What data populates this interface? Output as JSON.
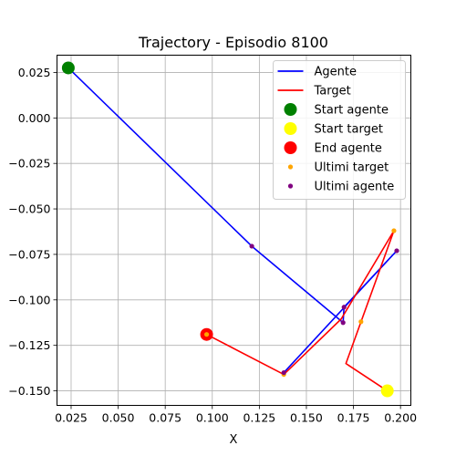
{
  "chart_data": {
    "type": "line",
    "title": "Trajectory - Episodio 8100",
    "xlabel": "X",
    "ylabel": "",
    "xlim": [
      0.0175,
      0.2055
    ],
    "ylim": [
      -0.158,
      0.0345
    ],
    "xticks": [
      0.025,
      0.05,
      0.075,
      0.1,
      0.125,
      0.15,
      0.175,
      0.2
    ],
    "xtick_labels": [
      "0.025",
      "0.050",
      "0.075",
      "0.100",
      "0.125",
      "0.150",
      "0.175",
      "0.200"
    ],
    "yticks": [
      0.025,
      0.0,
      -0.025,
      -0.05,
      -0.075,
      -0.1,
      -0.125,
      -0.15
    ],
    "ytick_labels": [
      "0.025",
      "0.000",
      "−0.025",
      "−0.050",
      "−0.075",
      "−0.100",
      "−0.125",
      "−0.150"
    ],
    "grid": true,
    "legend_position": "top-right",
    "series": [
      {
        "name": "Agente",
        "kind": "line",
        "color": "#0000ff",
        "points": [
          [
            0.0235,
            0.0275
          ],
          [
            0.121,
            -0.0705
          ],
          [
            0.1695,
            -0.1125
          ],
          [
            0.17,
            -0.104
          ],
          [
            0.198,
            -0.073
          ],
          [
            0.138,
            -0.14
          ]
        ]
      },
      {
        "name": "Target",
        "kind": "line",
        "color": "#ff0000",
        "points": [
          [
            0.193,
            -0.15
          ],
          [
            0.171,
            -0.135
          ],
          [
            0.1965,
            -0.062
          ],
          [
            0.1685,
            -0.1105
          ],
          [
            0.138,
            -0.141
          ],
          [
            0.097,
            -0.119
          ]
        ]
      },
      {
        "name": "Start agente",
        "kind": "marker",
        "color": "#008000",
        "points": [
          [
            0.0235,
            0.0275
          ]
        ]
      },
      {
        "name": "Start target",
        "kind": "marker",
        "color": "#ffff00",
        "points": [
          [
            0.193,
            -0.15
          ]
        ]
      },
      {
        "name": "End agente",
        "kind": "marker",
        "color": "#ff0000",
        "points": [
          [
            0.097,
            -0.119
          ]
        ]
      },
      {
        "name": "Ultimi target",
        "kind": "small-marker",
        "color": "#ffa500",
        "points": [
          [
            0.1965,
            -0.062
          ],
          [
            0.179,
            -0.112
          ],
          [
            0.138,
            -0.141
          ],
          [
            0.097,
            -0.119
          ]
        ]
      },
      {
        "name": "Ultimi agente",
        "kind": "small-marker",
        "color": "#800080",
        "points": [
          [
            0.121,
            -0.0705
          ],
          [
            0.1695,
            -0.1125
          ],
          [
            0.17,
            -0.104
          ],
          [
            0.198,
            -0.073
          ],
          [
            0.138,
            -0.14
          ]
        ]
      }
    ]
  }
}
